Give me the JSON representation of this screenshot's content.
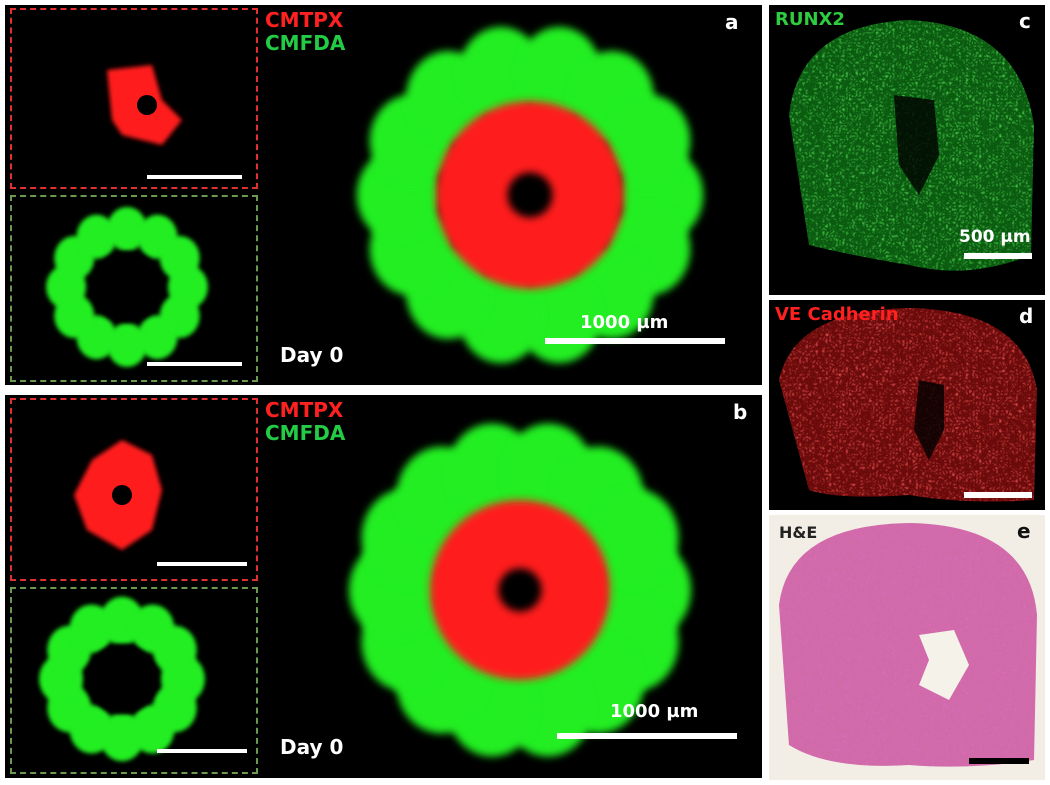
{
  "panels": {
    "a": {
      "letter": "a",
      "stain_red": "CMTPX",
      "stain_green": "CMFDA",
      "day": "Day 0",
      "scale": "1000 µm"
    },
    "b": {
      "letter": "b",
      "stain_red": "CMTPX",
      "stain_green": "CMFDA",
      "day": "Day 0",
      "scale": "1000 µm"
    },
    "c": {
      "letter": "c",
      "stain": "RUNX2",
      "scale": "500 µm"
    },
    "d": {
      "letter": "d",
      "stain": "VE Cadherin"
    },
    "e": {
      "letter": "e",
      "stain": "H&E"
    }
  },
  "colors": {
    "red": "#ff1a1a",
    "green": "#22ee22",
    "he_pink": "#c0338f",
    "background": "#000000"
  }
}
